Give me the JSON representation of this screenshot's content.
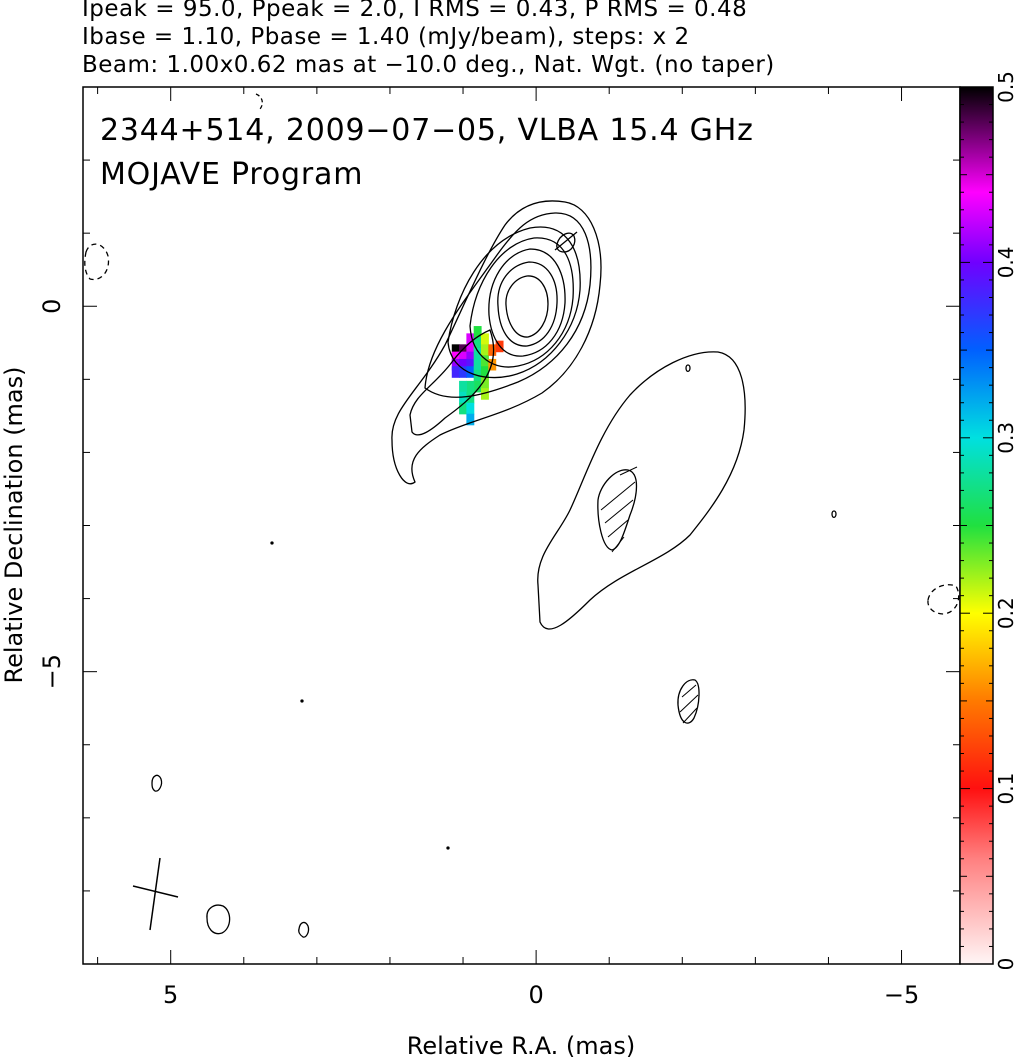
{
  "header": {
    "line1": "Ipeak = 95.0, Ppeak = 2.0, I RMS = 0.43, P RMS = 0.48",
    "line2": "Ibase = 1.10, Pbase = 1.40 (mJy/beam), steps: x 2",
    "line3": "Beam: 1.00x0.62 mas at −10.0 deg., Nat. Wgt. (no taper)"
  },
  "plot": {
    "title_line1": "2344+514, 2009−07−05, VLBA 15.4 GHz",
    "title_line2": "MOJAVE Program"
  },
  "chart_data": {
    "type": "contour",
    "xlabel": "Relative R.A. (mas)",
    "ylabel": "Relative Declination (mas)",
    "xlim": [
      6.2,
      -5.8
    ],
    "ylim": [
      -9.0,
      3.0
    ],
    "x_ticks": [
      5,
      0,
      -5
    ],
    "x_tick_labels": [
      "5",
      "0",
      "−5"
    ],
    "y_ticks": [
      0,
      -5
    ],
    "y_tick_labels": [
      "0",
      "−5"
    ],
    "colorbar": {
      "label_values": [
        0,
        0.1,
        0.2,
        0.3,
        0.4,
        0.5
      ],
      "labels": [
        "0",
        "0.1",
        "0.2",
        "0.3",
        "0.4",
        "0.5"
      ],
      "range": [
        0,
        0.5
      ]
    },
    "stokes_I": {
      "peak": 95.0,
      "base": 1.1,
      "steps": 2,
      "units": "mJy/beam",
      "core_position": [
        0.0,
        0.0
      ]
    },
    "polarization_pixels": [
      {
        "ra": 1.1,
        "dec": -0.6,
        "value": 0.5
      },
      {
        "ra": 1.0,
        "dec": -0.6,
        "value": 0.48
      },
      {
        "ra": 0.9,
        "dec": -0.45,
        "value": 0.43
      },
      {
        "ra": 0.9,
        "dec": -0.6,
        "value": 0.43
      },
      {
        "ra": 1.1,
        "dec": -0.7,
        "value": 0.44
      },
      {
        "ra": 1.0,
        "dec": -0.7,
        "value": 0.43
      },
      {
        "ra": 0.9,
        "dec": -0.7,
        "value": 0.41
      },
      {
        "ra": 1.1,
        "dec": -0.8,
        "value": 0.41
      },
      {
        "ra": 1.0,
        "dec": -0.8,
        "value": 0.4
      },
      {
        "ra": 0.9,
        "dec": -0.8,
        "value": 0.39
      },
      {
        "ra": 1.1,
        "dec": -0.9,
        "value": 0.38
      },
      {
        "ra": 1.0,
        "dec": -0.9,
        "value": 0.37
      },
      {
        "ra": 0.9,
        "dec": -0.9,
        "value": 0.35
      },
      {
        "ra": 0.8,
        "dec": -0.35,
        "value": 0.25
      },
      {
        "ra": 0.8,
        "dec": -0.5,
        "value": 0.27
      },
      {
        "ra": 0.8,
        "dec": -0.65,
        "value": 0.28
      },
      {
        "ra": 0.8,
        "dec": -0.8,
        "value": 0.28
      },
      {
        "ra": 0.8,
        "dec": -0.95,
        "value": 0.27
      },
      {
        "ra": 0.8,
        "dec": -1.1,
        "value": 0.26
      },
      {
        "ra": 0.9,
        "dec": -1.1,
        "value": 0.27
      },
      {
        "ra": 1.0,
        "dec": -1.1,
        "value": 0.28
      },
      {
        "ra": 1.0,
        "dec": -1.25,
        "value": 0.29
      },
      {
        "ra": 1.0,
        "dec": -1.4,
        "value": 0.27
      },
      {
        "ra": 0.9,
        "dec": -1.25,
        "value": 0.27
      },
      {
        "ra": 0.9,
        "dec": -1.4,
        "value": 0.3
      },
      {
        "ra": 0.9,
        "dec": -1.55,
        "value": 0.32
      },
      {
        "ra": 0.7,
        "dec": -0.45,
        "value": 0.21
      },
      {
        "ra": 0.7,
        "dec": -0.6,
        "value": 0.22
      },
      {
        "ra": 0.7,
        "dec": -0.75,
        "value": 0.24
      },
      {
        "ra": 0.7,
        "dec": -0.9,
        "value": 0.25
      },
      {
        "ra": 0.7,
        "dec": -1.05,
        "value": 0.23
      },
      {
        "ra": 0.7,
        "dec": -1.2,
        "value": 0.22
      },
      {
        "ra": 0.6,
        "dec": -0.6,
        "value": 0.14
      },
      {
        "ra": 0.6,
        "dec": -0.8,
        "value": 0.16
      },
      {
        "ra": 0.5,
        "dec": -0.55,
        "value": 0.12
      }
    ],
    "beam": {
      "major_mas": 1.0,
      "minor_mas": 0.62,
      "pa_deg": -10.0,
      "weighting": "Nat. Wgt. (no taper)"
    }
  }
}
